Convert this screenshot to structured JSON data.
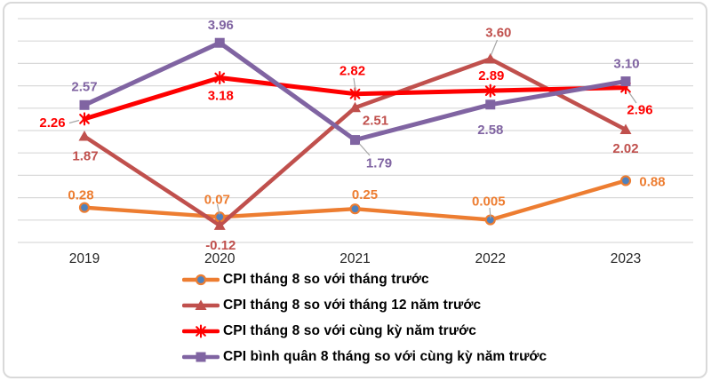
{
  "frame": {
    "background": "#FFFFFF",
    "border_color": "#D9D9D9"
  },
  "chart_data": {
    "type": "line",
    "title": "",
    "categories": [
      "2019",
      "2020",
      "2021",
      "2022",
      "2023"
    ],
    "series": [
      {
        "name": "CPI tháng 8 so với tháng trước",
        "values": [
          0.28,
          0.07,
          0.25,
          0.005,
          0.88
        ],
        "labels": [
          "0.28",
          "0.07",
          "0.25",
          "0.005",
          "0.88"
        ],
        "color": "#ED7D31",
        "marker": "circle",
        "marker_fill": "#4F81BD"
      },
      {
        "name": "CPI tháng 8 so với tháng 12 năm trước",
        "values": [
          1.87,
          -0.12,
          2.51,
          3.6,
          2.02
        ],
        "labels": [
          "1.87",
          "-0.12",
          "2.51",
          "3.60",
          "2.02"
        ],
        "color": "#C0504D",
        "marker": "triangle",
        "marker_fill": "#C0504D"
      },
      {
        "name": "CPI tháng 8 so với cùng kỳ năm trước",
        "values": [
          2.26,
          3.18,
          2.82,
          2.89,
          2.96
        ],
        "labels": [
          "2.26",
          "3.18",
          "2.82",
          "2.89",
          "2.96"
        ],
        "color": "#FE0000",
        "marker": "asterisk",
        "marker_fill": "#FE0000"
      },
      {
        "name": "CPI bình quân 8 tháng so với cùng kỳ năm trước",
        "values": [
          2.57,
          3.96,
          1.79,
          2.58,
          3.1
        ],
        "labels": [
          "2.57",
          "3.96",
          "1.79",
          "2.58",
          "3.10"
        ],
        "color": "#8064A2",
        "marker": "square",
        "marker_fill": "#8064A2"
      }
    ],
    "xlabel": "",
    "ylabel": "",
    "ylim": [
      -0.5,
      4.5
    ],
    "y_grid_step": 0.5,
    "grid": true,
    "y_axis_labels_visible": false,
    "legend_position": "bottom",
    "gridline_color": "#D9D9D9",
    "axis_text_color": "#262626",
    "leader_line_color": "#A6A6A6"
  }
}
